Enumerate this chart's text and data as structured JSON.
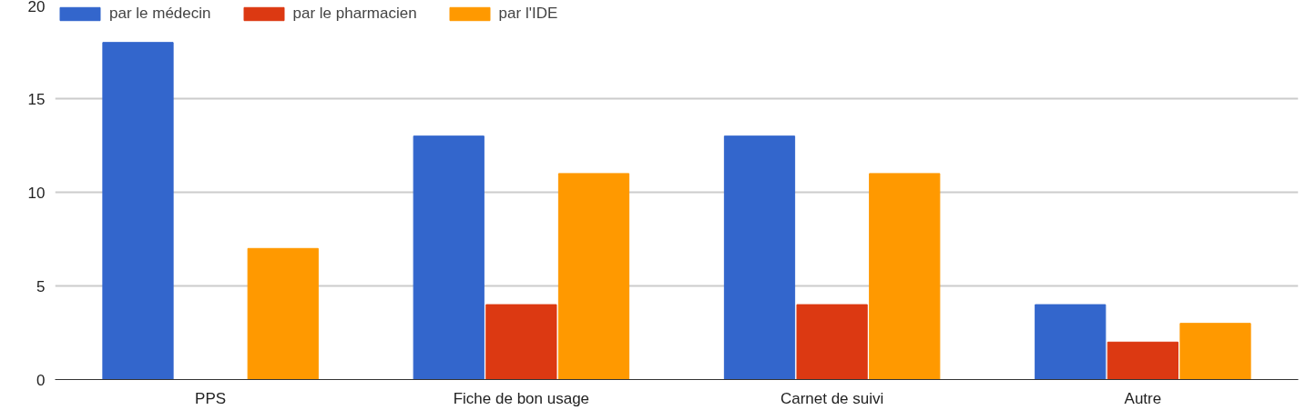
{
  "chart_data": {
    "type": "bar",
    "categories": [
      "PPS",
      "Fiche de bon usage",
      "Carnet de suivi",
      "Autre"
    ],
    "series": [
      {
        "name": "par le médecin",
        "color": "#3366cc",
        "values": [
          18,
          13,
          13,
          4
        ]
      },
      {
        "name": "par le pharmacien",
        "color": "#dc3912",
        "values": [
          0,
          4,
          4,
          2
        ]
      },
      {
        "name": "par l'IDE",
        "color": "#ff9900",
        "values": [
          7,
          11,
          11,
          3
        ]
      }
    ],
    "ylim": [
      0,
      20
    ],
    "yticks": [
      0,
      5,
      10,
      15,
      20
    ],
    "grid": "y",
    "legend": "top left"
  }
}
